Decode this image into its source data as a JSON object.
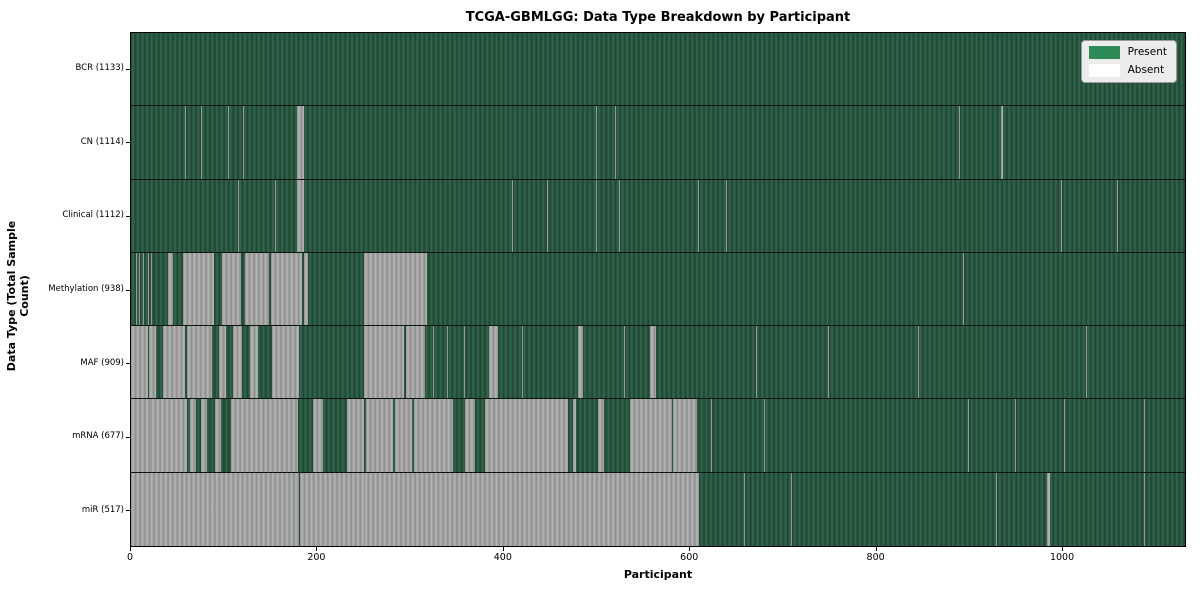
{
  "title": "TCGA-GBMLGG: Data Type Breakdown by Participant",
  "axes": {
    "x_label": "Participant",
    "y_label": "Data Type (Total Sample Count)"
  },
  "legend": {
    "present_label": "Present",
    "absent_label": "Absent"
  },
  "colors": {
    "present_dark": "#1e4531",
    "present_light": "#346850",
    "absent_dark": "#8d8d8d",
    "absent_light": "#b7b7b7",
    "legend_present": "#2e8b57",
    "legend_absent": "#ffffff"
  },
  "chart_data": {
    "type": "heatmap",
    "title": "TCGA-GBMLGG: Data Type Breakdown by Participant",
    "xlabel": "Participant",
    "ylabel": "Data Type (Total Sample Count)",
    "x_ticks": [
      0,
      200,
      400,
      600,
      800,
      1000
    ],
    "x_max": 1133,
    "legend_entries": [
      "Present",
      "Absent"
    ],
    "legend_position": "upper right",
    "rows": [
      {
        "label": "BCR (1133)",
        "data_type": "BCR",
        "present_count": 1133,
        "absent_ranges": []
      },
      {
        "label": "CN (1114)",
        "data_type": "CN",
        "present_count": 1114,
        "absent_ranges": [
          [
            58,
            58
          ],
          [
            75,
            75
          ],
          [
            104,
            104
          ],
          [
            120,
            120
          ],
          [
            178,
            185
          ],
          [
            250,
            250
          ],
          [
            293,
            293
          ],
          [
            500,
            500
          ],
          [
            520,
            520
          ],
          [
            890,
            890
          ],
          [
            935,
            936
          ]
        ]
      },
      {
        "label": "Clinical (1112)",
        "data_type": "Clinical",
        "present_count": 1112,
        "absent_ranges": [
          [
            93,
            93
          ],
          [
            115,
            115
          ],
          [
            155,
            155
          ],
          [
            178,
            185
          ],
          [
            250,
            250
          ],
          [
            294,
            294
          ],
          [
            410,
            410
          ],
          [
            447,
            447
          ],
          [
            500,
            500
          ],
          [
            525,
            525
          ],
          [
            610,
            610
          ],
          [
            640,
            640
          ],
          [
            1000,
            1000
          ],
          [
            1060,
            1060
          ]
        ]
      },
      {
        "label": "Methylation (938)",
        "data_type": "Methylation",
        "present_count": 938,
        "absent_ranges": [
          [
            5,
            5
          ],
          [
            9,
            9
          ],
          [
            13,
            13
          ],
          [
            18,
            18
          ],
          [
            22,
            22
          ],
          [
            40,
            44
          ],
          [
            56,
            88
          ],
          [
            98,
            117
          ],
          [
            123,
            147
          ],
          [
            151,
            183
          ],
          [
            186,
            189
          ],
          [
            250,
            317
          ],
          [
            894,
            894
          ],
          [
            1010,
            1010
          ]
        ]
      },
      {
        "label": "MAF (909)",
        "data_type": "MAF",
        "present_count": 909,
        "absent_ranges": [
          [
            0,
            17
          ],
          [
            19,
            26
          ],
          [
            34,
            57
          ],
          [
            60,
            86
          ],
          [
            95,
            101
          ],
          [
            110,
            118
          ],
          [
            128,
            136
          ],
          [
            152,
            180
          ],
          [
            250,
            292
          ],
          [
            296,
            315
          ],
          [
            325,
            325
          ],
          [
            340,
            340
          ],
          [
            358,
            358
          ],
          [
            385,
            393
          ],
          [
            420,
            420
          ],
          [
            480,
            485
          ],
          [
            530,
            530
          ],
          [
            558,
            563
          ],
          [
            672,
            672
          ],
          [
            749,
            749
          ],
          [
            846,
            846
          ],
          [
            1027,
            1027
          ]
        ]
      },
      {
        "label": "mRNA (677)",
        "data_type": "mRNA",
        "present_count": 677,
        "absent_ranges": [
          [
            0,
            20
          ],
          [
            22,
            59
          ],
          [
            63,
            69
          ],
          [
            75,
            81
          ],
          [
            90,
            96
          ],
          [
            108,
            178
          ],
          [
            196,
            205
          ],
          [
            232,
            250
          ],
          [
            253,
            281
          ],
          [
            284,
            301
          ],
          [
            304,
            345
          ],
          [
            359,
            369
          ],
          [
            381,
            469
          ],
          [
            475,
            477
          ],
          [
            502,
            508
          ],
          [
            536,
            581
          ],
          [
            583,
            607
          ],
          [
            624,
            624
          ],
          [
            680,
            680
          ],
          [
            900,
            900
          ],
          [
            950,
            950
          ],
          [
            1003,
            1003
          ],
          [
            1089,
            1089
          ]
        ]
      },
      {
        "label": "miR (517)",
        "data_type": "miR",
        "present_count": 517,
        "absent_ranges": [
          [
            0,
            180
          ],
          [
            182,
            249
          ],
          [
            251,
            610
          ],
          [
            659,
            659
          ],
          [
            710,
            710
          ],
          [
            930,
            930
          ],
          [
            985,
            987
          ],
          [
            1089,
            1089
          ]
        ]
      }
    ]
  }
}
